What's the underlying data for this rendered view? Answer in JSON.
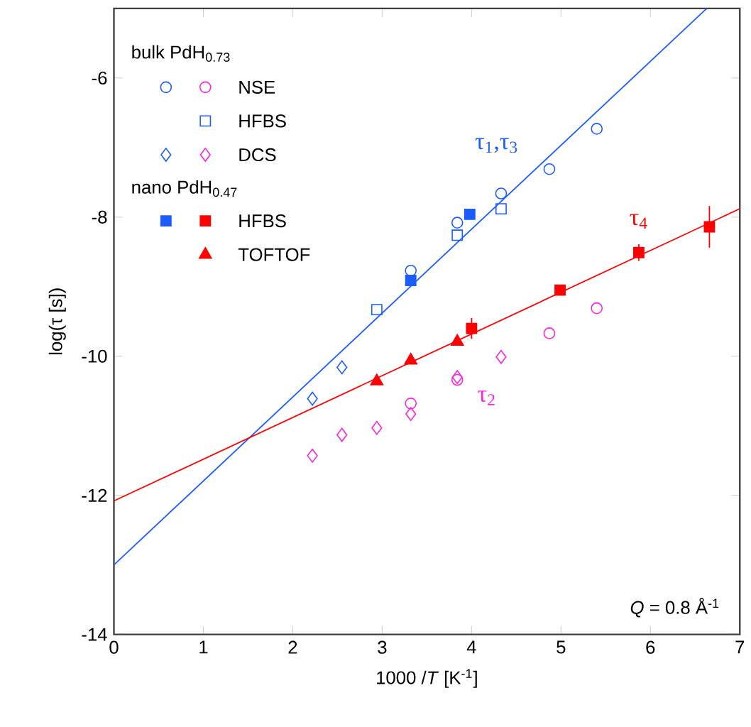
{
  "chart_data": {
    "type": "scatter",
    "xlabel": "1000 /*T* [K$^{-1}$]",
    "ylabel": "log(τ [s])",
    "xlim": [
      0,
      7
    ],
    "ylim": [
      -14,
      -5
    ],
    "xticks": [
      0,
      1,
      2,
      3,
      4,
      5,
      6,
      7
    ],
    "yticks": [
      -14,
      -12,
      -10,
      -8,
      -6,
      {
        "value": -5,
        "label": null
      }
    ],
    "legend": "top left",
    "annotations": [
      "bulk PdH$_{0.73}$",
      "nano PdH$_{0.47}$",
      "*Q* = 0.8 Å$^{-1}$",
      "τ$_{1}$,τ$_{3}$",
      "τ$_{4}$",
      "τ$_{2}$"
    ],
    "series": [
      {
        "color": "#1a5cff",
        "marker": "circle",
        "x": [
          5.4,
          4.87,
          4.33,
          3.84,
          3.32
        ],
        "values": [
          -6.73,
          -7.31,
          -7.66,
          -8.08,
          -8.77
        ]
      },
      {
        "name": "NSE",
        "color": "#ff22dd",
        "marker": "circle",
        "x": [
          5.4,
          4.87,
          3.84,
          3.32
        ],
        "values": [
          -9.31,
          -9.67,
          -10.34,
          -10.68
        ]
      },
      {
        "name": "HFBS",
        "color": "#1a5cff",
        "marker": "square",
        "x": [
          4.33,
          3.84,
          2.94
        ],
        "values": [
          -7.88,
          -8.26,
          -9.33
        ]
      },
      {
        "color": "#1a5cff",
        "marker": "diamond",
        "x": [
          2.55,
          2.22
        ],
        "values": [
          -10.16,
          -10.61
        ]
      },
      {
        "name": "DCS",
        "color": "#ff22dd",
        "marker": "diamond",
        "x": [
          4.33,
          3.84,
          3.32,
          2.94,
          2.55,
          2.22
        ],
        "values": [
          -10.01,
          -10.3,
          -10.83,
          -11.03,
          -11.13,
          -11.43
        ]
      },
      {
        "color": "#1a5cff",
        "marker": "square",
        "x": [
          3.98,
          3.32
        ],
        "values": [
          -7.96,
          -8.91
        ]
      },
      {
        "name": "HFBS",
        "color": "#ff0000",
        "marker": "square",
        "x": [
          4.0,
          4.99,
          5.87,
          6.66
        ],
        "values": [
          -9.6,
          -9.05,
          -8.51,
          -8.14
        ],
        "errors": [
          0.15,
          null,
          0.12,
          0.3
        ]
      },
      {
        "name": "TOFTOF",
        "color": "#ff0000",
        "marker": "triangle",
        "x": [
          3.84,
          3.32,
          2.94
        ],
        "values": [
          -9.79,
          -10.06,
          -10.36
        ]
      },
      {
        "type": "line",
        "color": "#1a5cff",
        "marker": "none",
        "x": [
          0,
          6.63
        ],
        "values": [
          -13.0,
          -5.0
        ]
      },
      {
        "type": "line",
        "color": "#ff0000",
        "marker": "none",
        "x": [
          0,
          7
        ],
        "values": [
          -12.08,
          -7.88
        ]
      }
    ]
  }
}
